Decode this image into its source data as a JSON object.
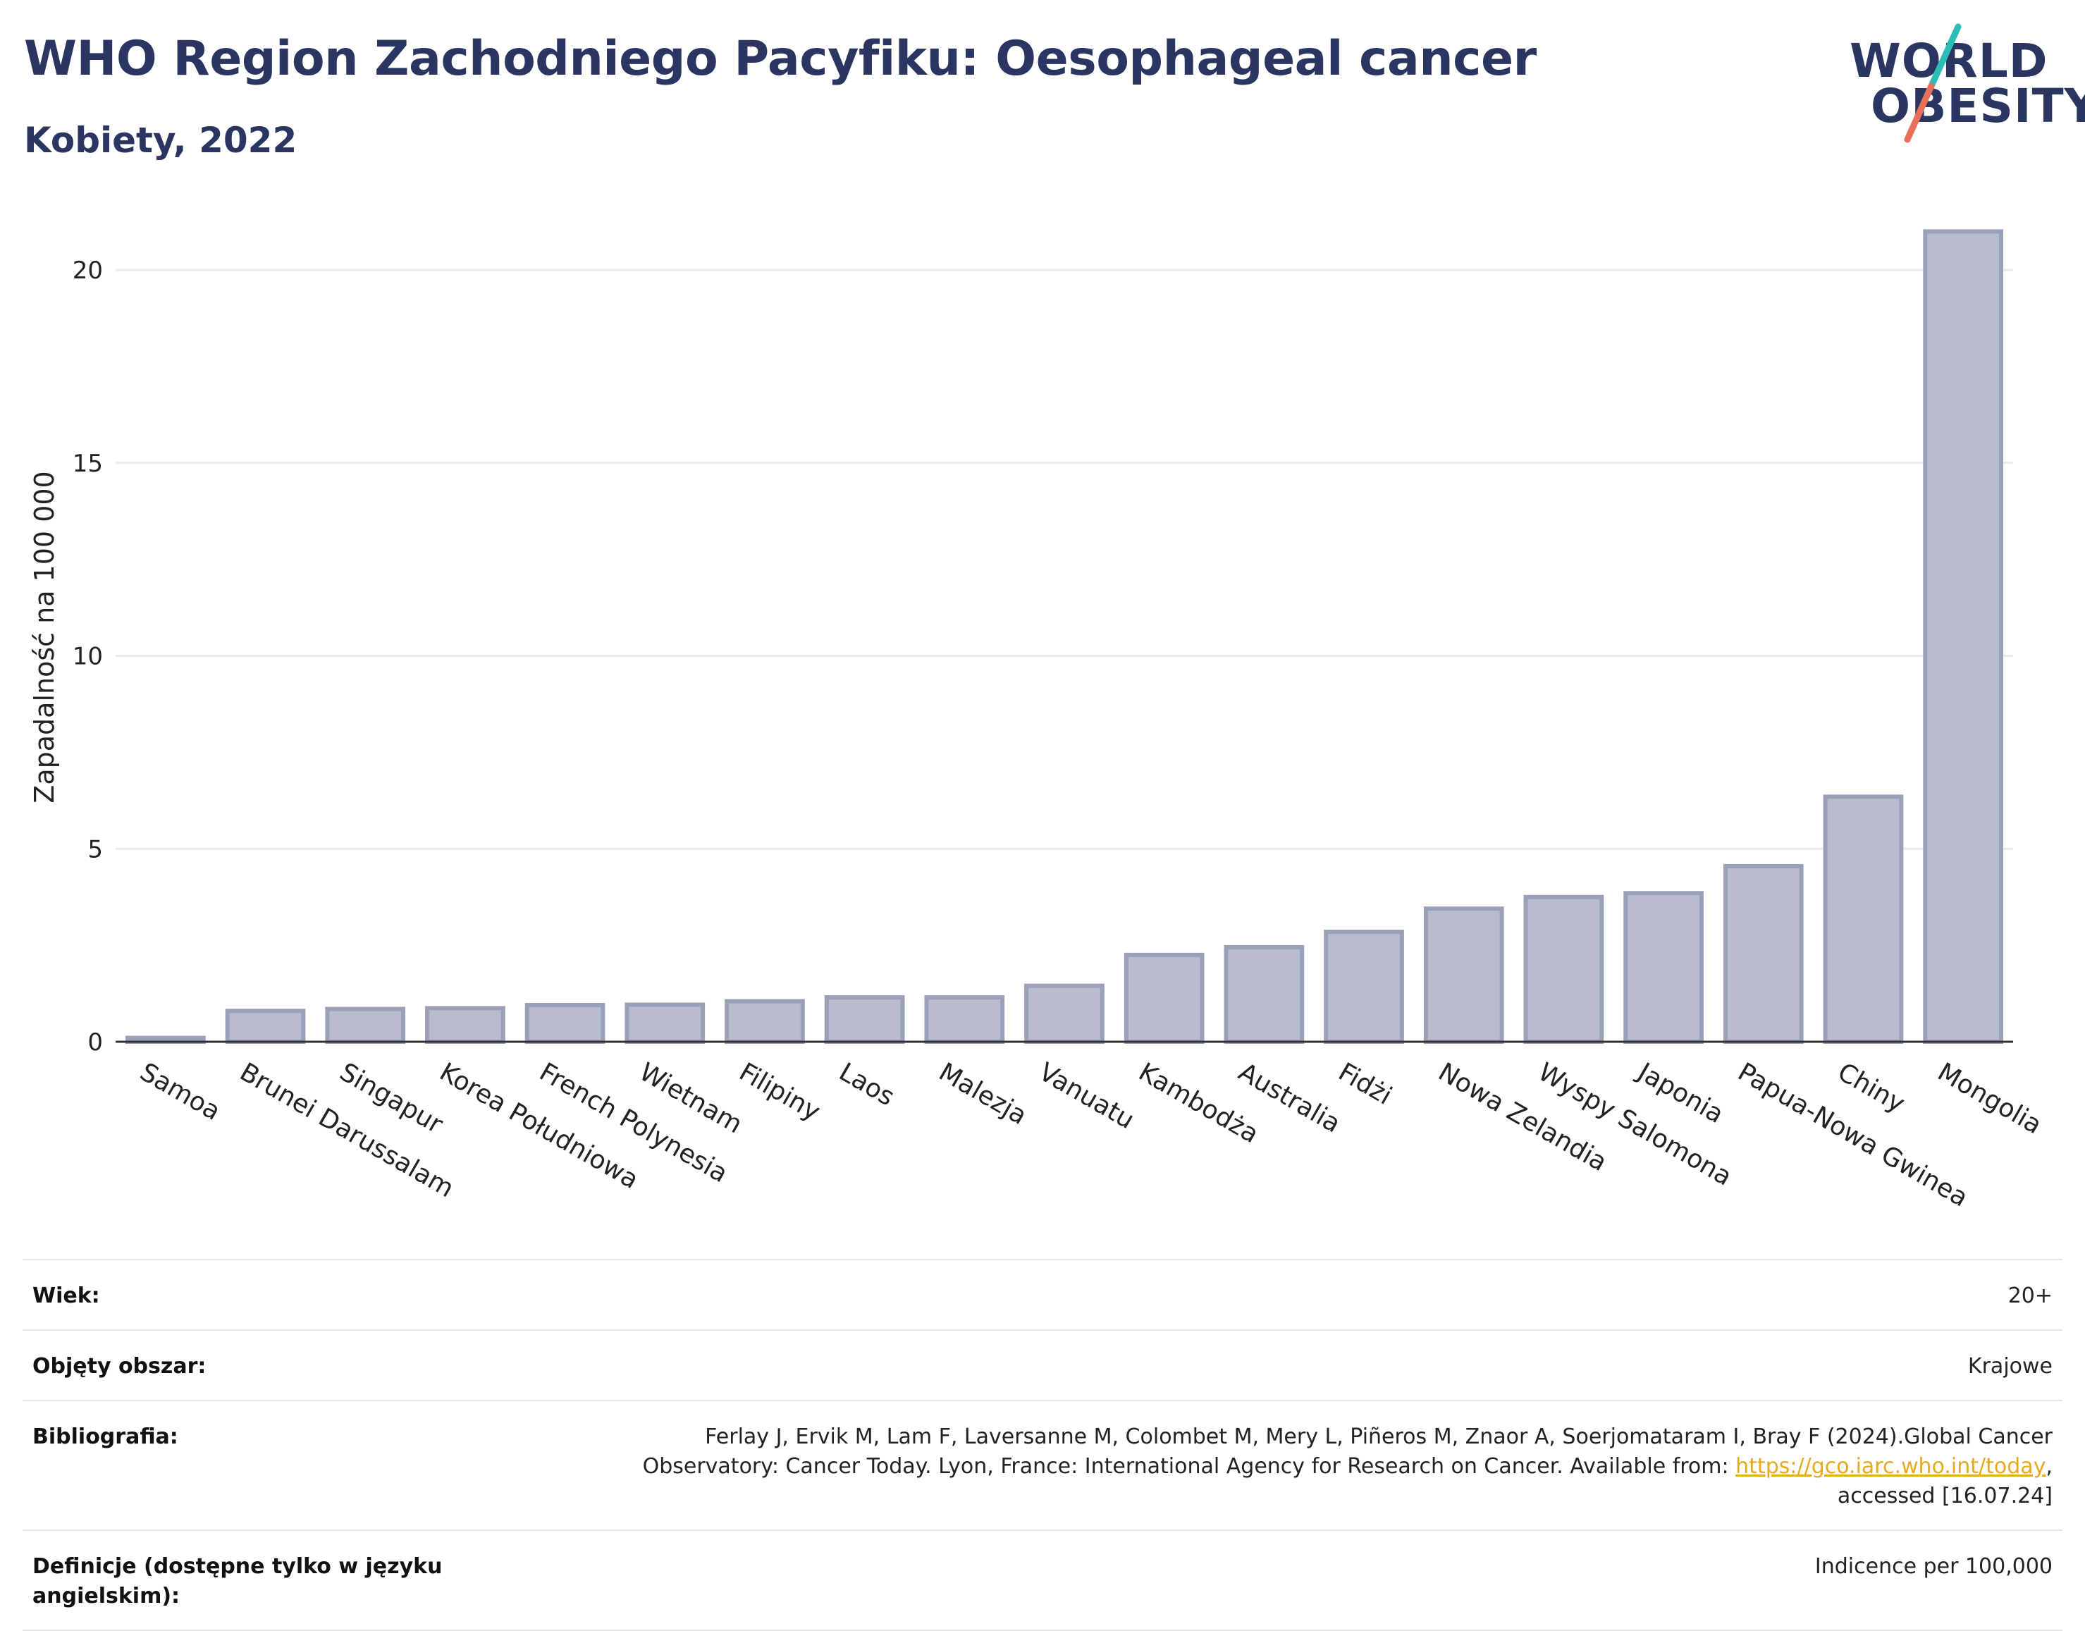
{
  "header": {
    "title": "WHO Region Zachodniego Pacyfiku: Oesophageal cancer",
    "subtitle": "Kobiety, 2022"
  },
  "logo": {
    "line1": "WORLD",
    "line2": "OBESITY",
    "slash_colors": [
      "#2bbdb6",
      "#e8705a"
    ]
  },
  "chart_data": {
    "type": "bar",
    "title": "WHO Region Zachodniego Pacyfiku: Oesophageal cancer",
    "subtitle": "Kobiety, 2022",
    "ylabel": "Zapadalność na 100 000",
    "xlabel": "",
    "ylim": [
      0,
      21.7
    ],
    "yticks": [
      0,
      5,
      10,
      15,
      20
    ],
    "grid": true,
    "bar_color": "#b8bccd",
    "bar_edge_color": "#9aa0b8",
    "categories": [
      "Samoa",
      "Brunei Darussalam",
      "Singapur",
      "Korea Południowa",
      "French Polynesia",
      "Wietnam",
      "Filipiny",
      "Laos",
      "Malezja",
      "Vanuatu",
      "Kambodża",
      "Australia",
      "Fidżi",
      "Nowa Zelandia",
      "Wyspy Salomona",
      "Japonia",
      "Papua-Nowa Gwinea",
      "Chiny",
      "Mongolia"
    ],
    "values": [
      0.1,
      0.8,
      0.85,
      0.87,
      0.95,
      0.96,
      1.05,
      1.15,
      1.15,
      1.45,
      2.25,
      2.45,
      2.85,
      3.45,
      3.75,
      3.85,
      4.55,
      6.35,
      21.0
    ]
  },
  "meta": [
    {
      "key": "Wiek:",
      "value": "20+"
    },
    {
      "key": "Objęty obszar:",
      "value": "Krajowe"
    },
    {
      "key": "Bibliografia:",
      "value_line1": "Ferlay J, Ervik M, Lam F, Laversanne M, Colombet M, Mery L, Piñeros M, Znaor A, Soerjomataram I, Bray F (2024).Global Cancer",
      "value_line2_pre": "Observatory: Cancer Today. Lyon, France: International Agency for Research on Cancer. Available from: ",
      "link": "https://gco.iarc.who.int/today",
      "value_line2_post": ",",
      "value_line3": "accessed [16.07.24]"
    },
    {
      "key": "Definicje (dostępne tylko w języku angielskim):",
      "value": "Indicence per 100,000"
    }
  ]
}
